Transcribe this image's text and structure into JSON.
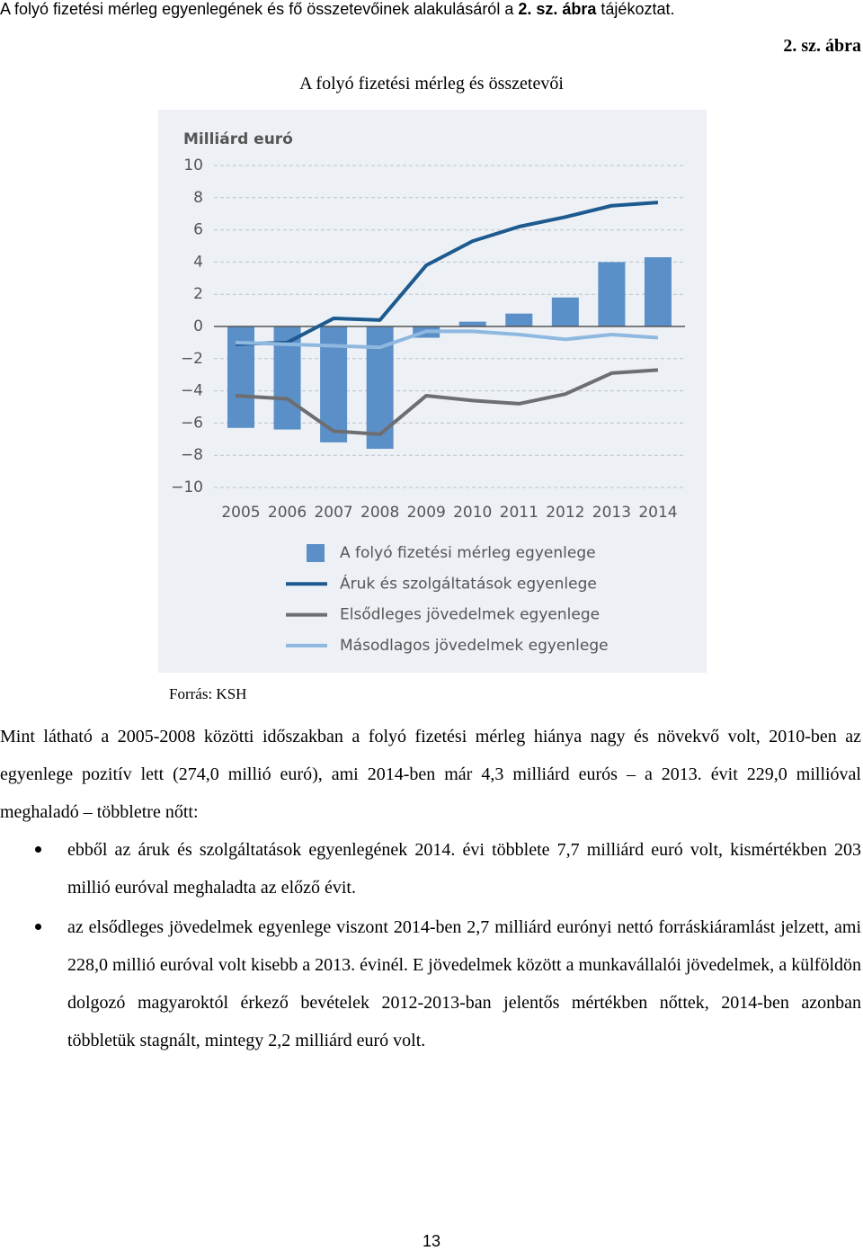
{
  "header": {
    "intro_before": "A folyó fizetési mérleg egyenlegének és fő összetevőinek alakulásáról a",
    "intro_bold": "2. sz. ábra",
    "intro_after": "tájékoztat.",
    "figure_label": "2. sz. ábra",
    "figure_title": "A folyó fizetési mérleg és összetevői"
  },
  "chart_data": {
    "type": "combo",
    "y_axis_label": "Milliárd euró",
    "categories": [
      "2005",
      "2006",
      "2007",
      "2008",
      "2009",
      "2010",
      "2011",
      "2012",
      "2013",
      "2014"
    ],
    "series": [
      {
        "name": "A folyó fizetési mérleg egyenlege",
        "type": "bar",
        "color": "#5b8fc7",
        "values": [
          -6.3,
          -6.4,
          -7.2,
          -7.6,
          -0.7,
          0.3,
          0.8,
          1.8,
          4.0,
          4.3
        ]
      },
      {
        "name": "Áruk és szolgáltatások egyenlege",
        "type": "line",
        "color": "#1c5a8f",
        "values": [
          -1.1,
          -1.0,
          0.5,
          0.4,
          3.8,
          5.3,
          6.2,
          6.8,
          7.5,
          7.7
        ]
      },
      {
        "name": "Elsődleges jövedelmek egyenlege",
        "type": "line",
        "color": "#6d6e71",
        "values": [
          -4.3,
          -4.5,
          -6.5,
          -6.7,
          -4.3,
          -4.6,
          -4.8,
          -4.2,
          -2.9,
          -2.7
        ]
      },
      {
        "name": "Másodlagos jövedelmek egyenlege",
        "type": "line",
        "color": "#8fb8e0",
        "values": [
          -1.0,
          -1.1,
          -1.2,
          -1.3,
          -0.3,
          -0.3,
          -0.5,
          -0.8,
          -0.5,
          -0.7
        ]
      }
    ],
    "ylim": [
      -10,
      10
    ],
    "yticks": [
      {
        "value": -10,
        "label": "−10"
      },
      {
        "value": -8,
        "label": "−8"
      },
      {
        "value": -6,
        "label": "−6"
      },
      {
        "value": -4,
        "label": "−4"
      },
      {
        "value": -2,
        "label": "−2"
      },
      0,
      2,
      4,
      6,
      8,
      10
    ],
    "grid": true
  },
  "source": "Forrás: KSH",
  "body": {
    "paragraph": "Mint látható a 2005-2008 közötti időszakban a folyó fizetési mérleg hiánya nagy és növekvő volt, 2010-ben az egyenlege pozitív lett (274,0 millió euró), ami 2014-ben már 4,3 milliárd eurós – a 2013. évit 229,0 millióval meghaladó – többletre nőtt:",
    "bullets": [
      "ebből az áruk és szolgáltatások egyenlegének 2014. évi többlete 7,7 milliárd euró volt, kismértékben 203 millió euróval meghaladta az előző évit.",
      "az elsődleges jövedelmek egyenlege viszont 2014-ben 2,7 milliárd eurónyi nettó forráskiáramlást jelzett, ami 228,0 millió euróval volt kisebb a 2013. évinél. E jövedelmek között a munkavállalói jövedelmek, a külföldön dolgozó magyaroktól érkező bevételek 2012-2013-ban jelentős mértékben nőttek, 2014-ben azonban többletük stagnált, mintegy 2,2 milliárd euró volt."
    ]
  },
  "page_number": "13"
}
